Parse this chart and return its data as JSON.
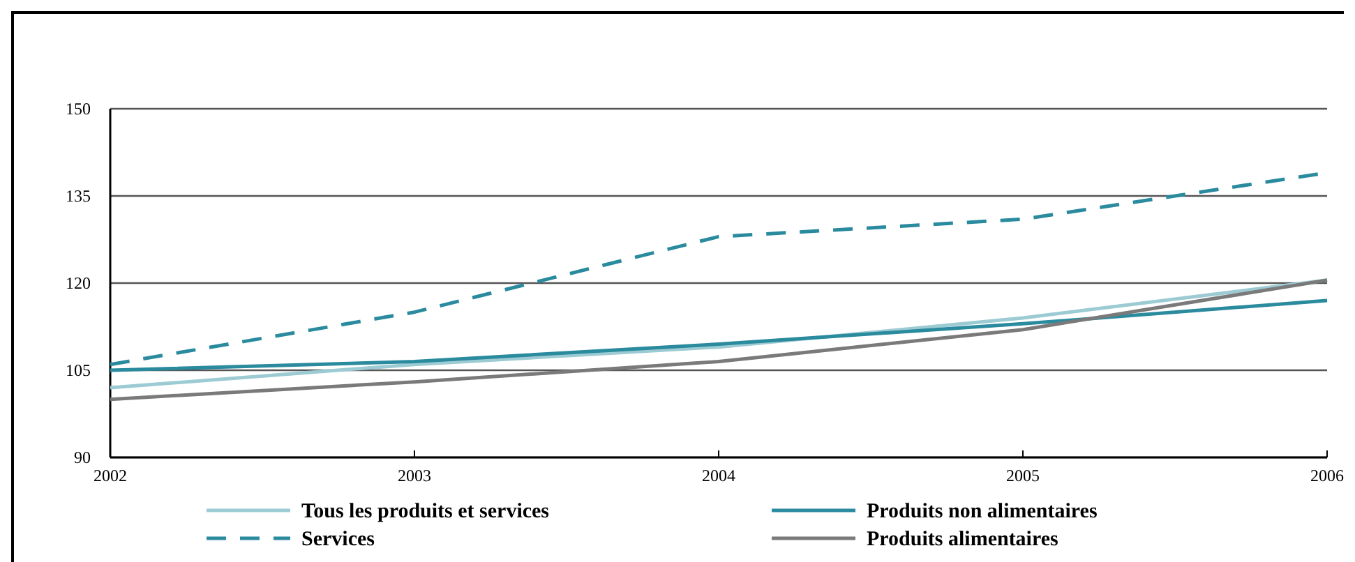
{
  "chart_data": {
    "type": "line",
    "x": [
      2002,
      2003,
      2004,
      2005,
      2006
    ],
    "series": [
      {
        "name": "Tous les produits et services",
        "color": "#9ccbd3",
        "values": [
          102,
          106,
          109,
          114,
          120.5
        ]
      },
      {
        "name": "Produits non alimentaires",
        "color": "#2a8a9e",
        "values": [
          105,
          106.5,
          109.5,
          113,
          117
        ]
      },
      {
        "name": "Services",
        "color": "#2a8a9e",
        "line_style": "dashed",
        "values": [
          106,
          115,
          128,
          131,
          139
        ]
      },
      {
        "name": "Produits alimentaires",
        "color": "#7a7a7a",
        "values": [
          100,
          103,
          106.5,
          112,
          120.5
        ]
      }
    ],
    "xlim": [
      2002,
      2006
    ],
    "xticks": [
      2002,
      2003,
      2004,
      2005,
      2006
    ],
    "ylim": [
      90,
      150
    ],
    "yticks": [
      90,
      105,
      120,
      135,
      150
    ],
    "grid": "y",
    "legend": "bottom",
    "marker": "none"
  }
}
